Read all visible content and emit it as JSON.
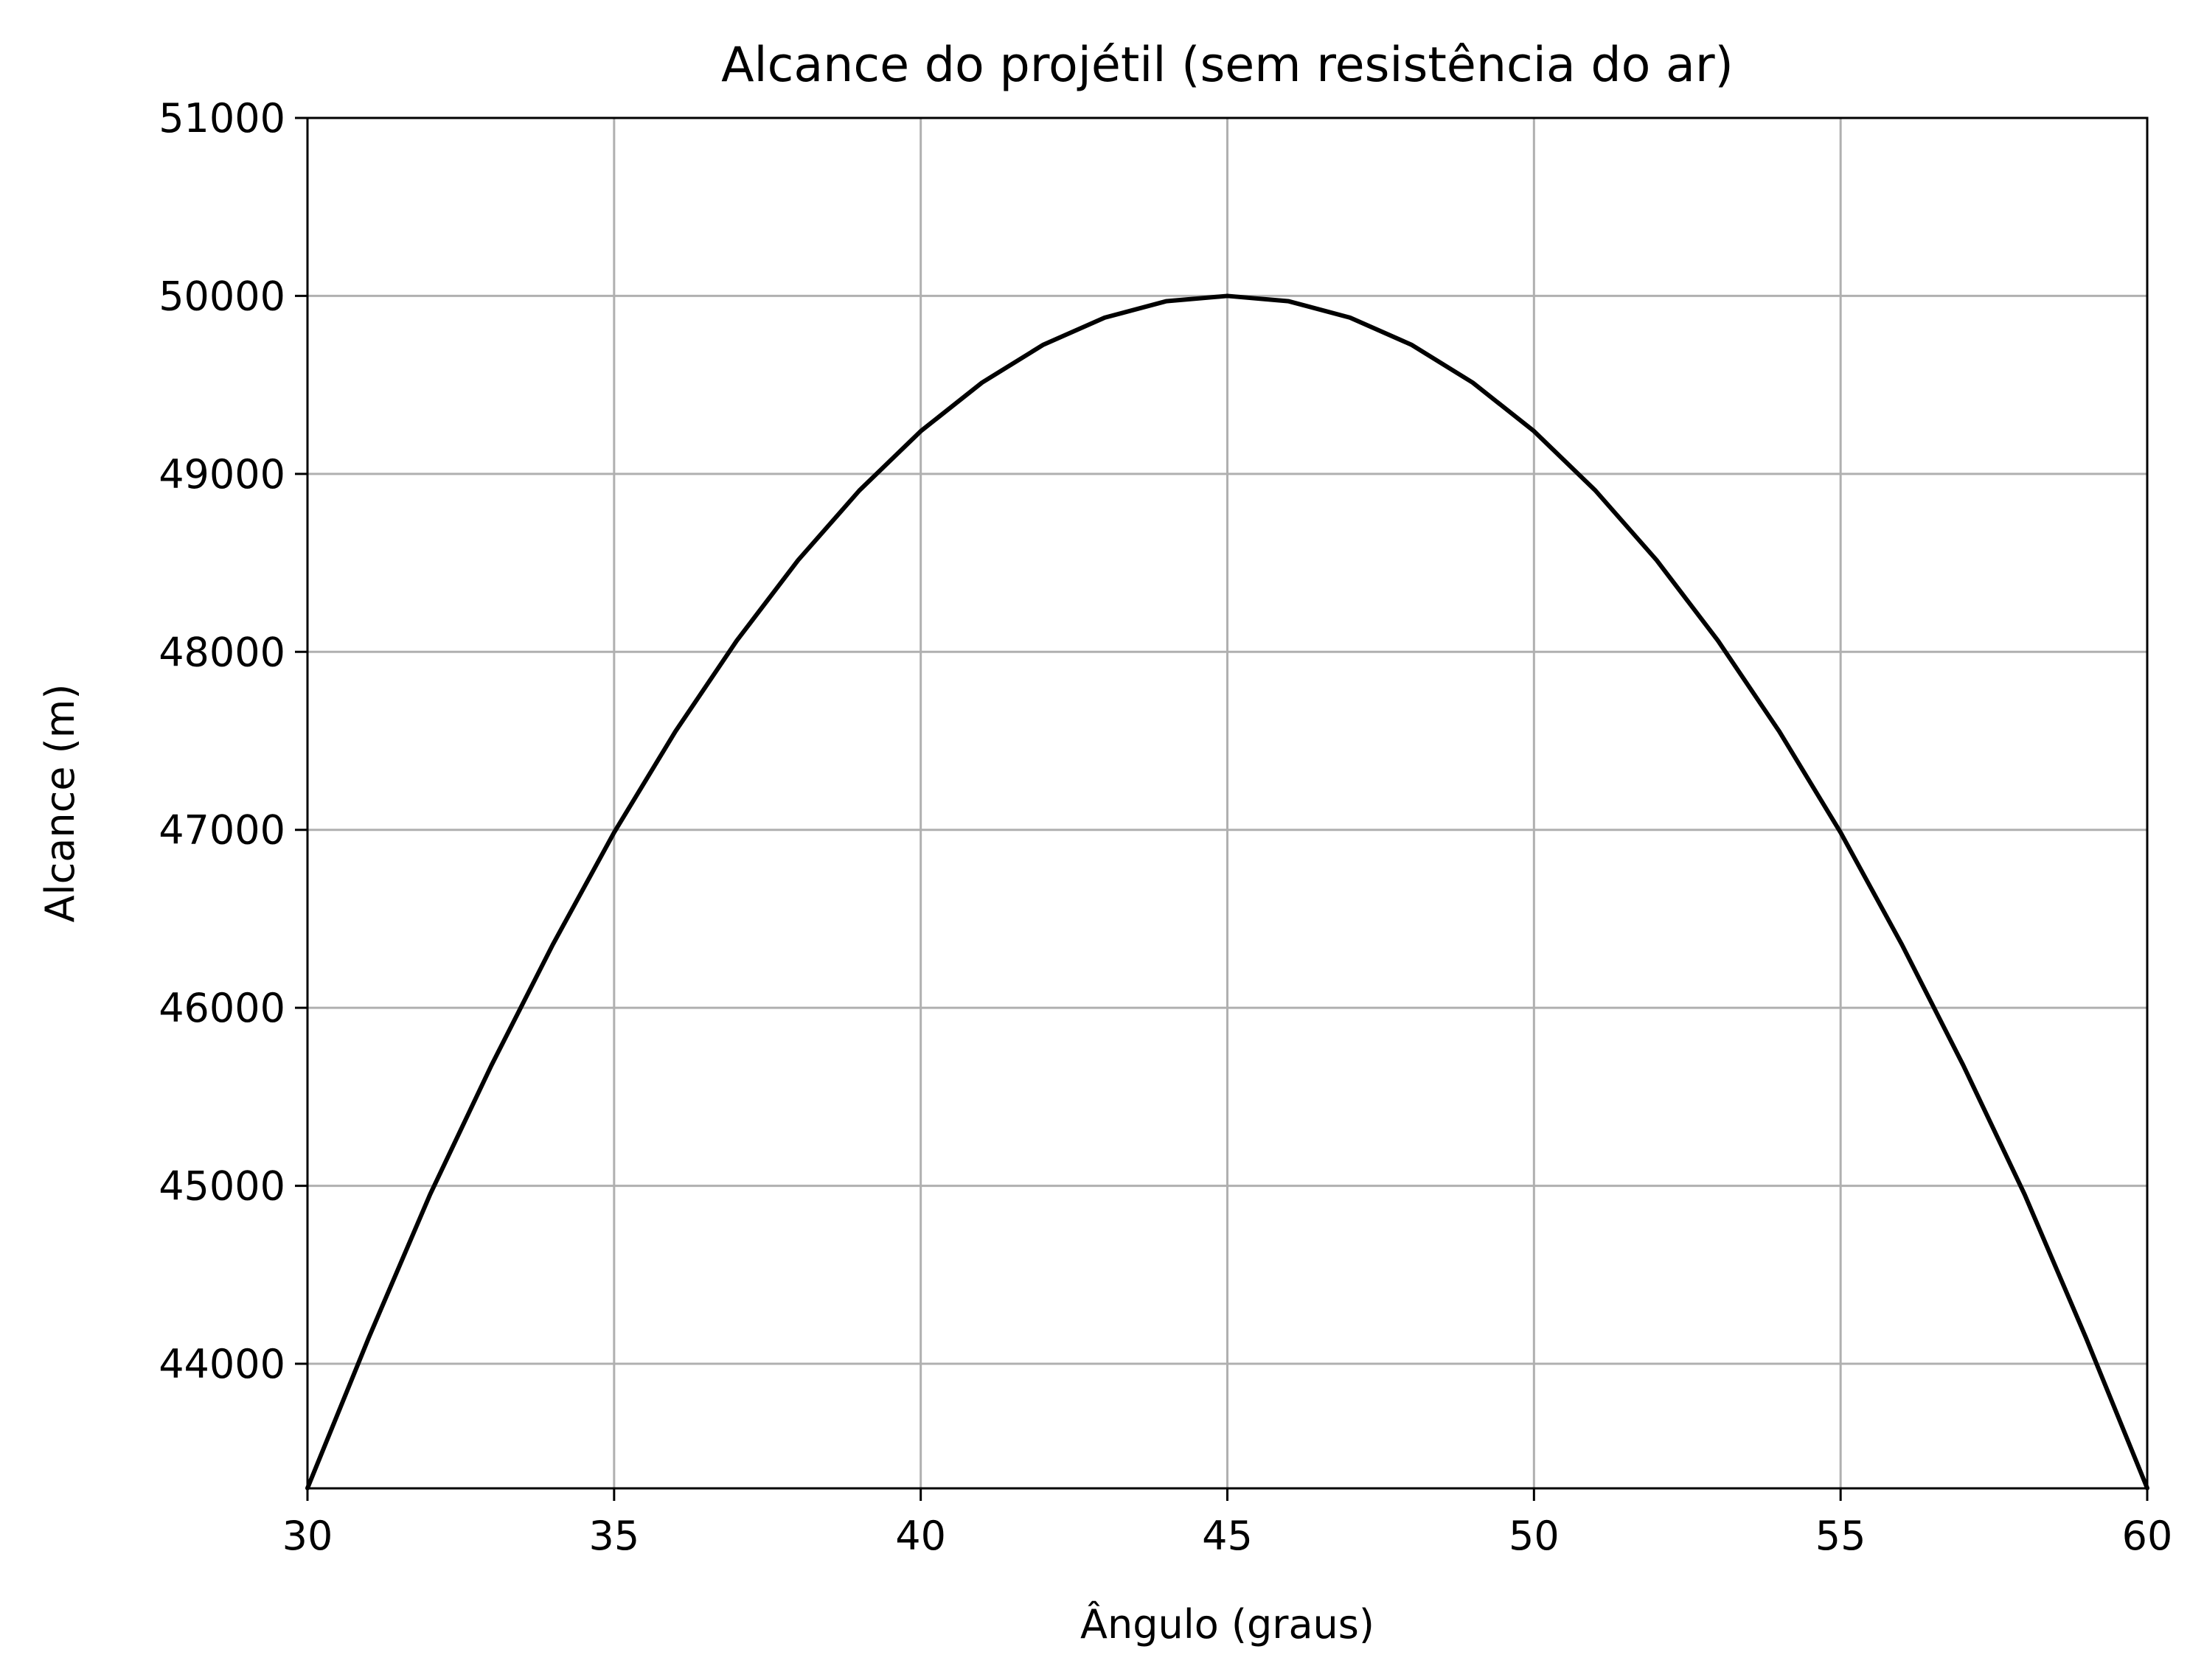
{
  "chart_data": {
    "type": "line",
    "title": "Alcance do projétil (sem resistência do ar)",
    "xlabel": "Ângulo (graus)",
    "ylabel": "Alcance (m)",
    "xlim": [
      30,
      60
    ],
    "ylim": [
      43300,
      51000
    ],
    "x_ticks": [
      30,
      35,
      40,
      45,
      50,
      55,
      60
    ],
    "y_ticks": [
      44000,
      45000,
      46000,
      47000,
      48000,
      49000,
      50000,
      51000
    ],
    "grid": true,
    "legend": "none",
    "series": [
      {
        "line_color": "#000000",
        "x": [
          30,
          31,
          32,
          33,
          34,
          35,
          36,
          37,
          38,
          39,
          40,
          41,
          42,
          43,
          44,
          45,
          46,
          47,
          48,
          49,
          50,
          51,
          52,
          53,
          54,
          55,
          56,
          57,
          58,
          59,
          60
        ],
        "y": [
          43301,
          44147,
          44952,
          45677,
          46355,
          46985,
          47553,
          48063,
          48515,
          48907,
          49240,
          49513,
          49726,
          49878,
          49970,
          50000,
          49970,
          49878,
          49726,
          49513,
          49240,
          48907,
          48515,
          48063,
          47553,
          46985,
          46355,
          45677,
          44952,
          44147,
          43301
        ]
      }
    ],
    "colors": {
      "grid": "#b0b0b0",
      "axes": "#000000",
      "line": "#000000"
    }
  }
}
